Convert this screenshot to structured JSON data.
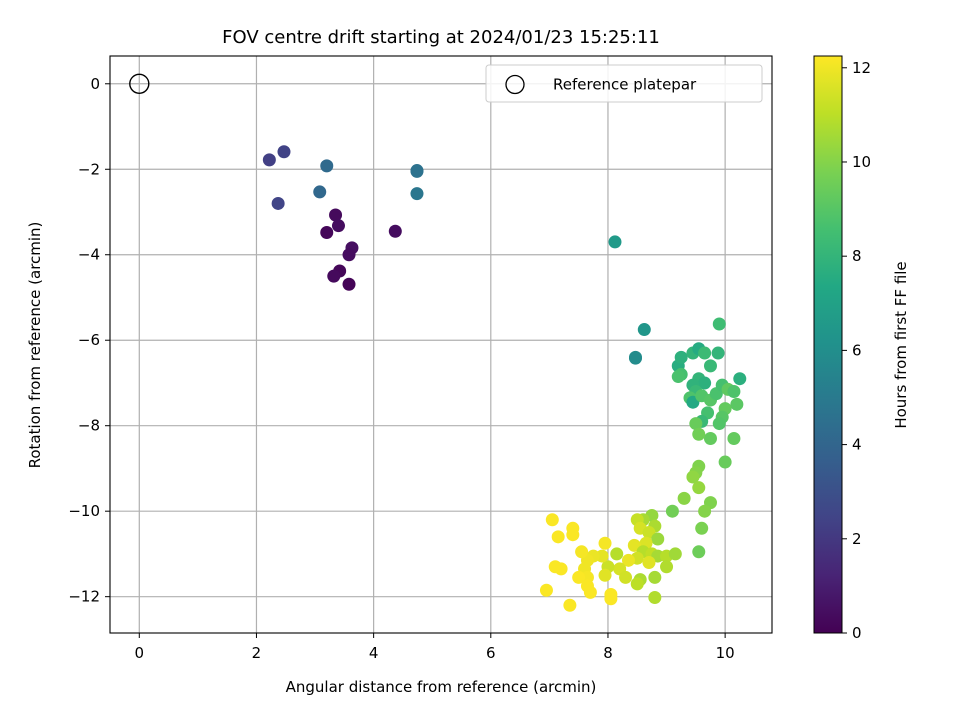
{
  "chart_data": {
    "type": "scatter",
    "title": "FOV centre drift starting at 2024/01/23 15:25:11",
    "xlabel": "Angular distance from reference (arcmin)",
    "ylabel": "Rotation from reference (arcmin)",
    "xlim": [
      -0.5,
      10.8
    ],
    "ylim": [
      -12.85,
      0.65
    ],
    "xticks": [
      0,
      2,
      4,
      6,
      8,
      10
    ],
    "yticks": [
      0,
      -2,
      -4,
      -6,
      -8,
      -10,
      -12
    ],
    "grid": true,
    "legend": {
      "position": "top-right",
      "entries": [
        "Reference platepar"
      ]
    },
    "reference_point": {
      "x": 0,
      "y": 0,
      "label": "Reference platepar",
      "marker": "open-circle"
    },
    "colorbar": {
      "label": "Hours from first FF file",
      "min": 0,
      "max": 12.25,
      "ticks": [
        0,
        2,
        4,
        6,
        8,
        10,
        12
      ],
      "colormap": "viridis"
    },
    "series": [
      {
        "points": [
          {
            "x": 2.22,
            "y": -1.78,
            "c": 2.3
          },
          {
            "x": 2.47,
            "y": -1.59,
            "c": 2.4
          },
          {
            "x": 2.37,
            "y": -2.8,
            "c": 2.5
          },
          {
            "x": 3.2,
            "y": -1.92,
            "c": 4.2
          },
          {
            "x": 3.08,
            "y": -2.53,
            "c": 4.1
          },
          {
            "x": 4.74,
            "y": -2.03,
            "c": 4.6
          },
          {
            "x": 4.74,
            "y": -2.05,
            "c": 4.6
          },
          {
            "x": 4.74,
            "y": -2.57,
            "c": 4.8
          },
          {
            "x": 3.35,
            "y": -3.07,
            "c": 0.3
          },
          {
            "x": 3.4,
            "y": -3.32,
            "c": 0.4
          },
          {
            "x": 3.2,
            "y": -3.48,
            "c": 0.2
          },
          {
            "x": 3.63,
            "y": -3.84,
            "c": 0.5
          },
          {
            "x": 3.58,
            "y": -4.0,
            "c": 0.4
          },
          {
            "x": 3.42,
            "y": -4.38,
            "c": 0.2
          },
          {
            "x": 3.32,
            "y": -4.5,
            "c": 0.3
          },
          {
            "x": 3.58,
            "y": -4.69,
            "c": 0.1
          },
          {
            "x": 4.37,
            "y": -3.45,
            "c": 0.4
          },
          {
            "x": 8.12,
            "y": -3.7,
            "c": 6.6
          },
          {
            "x": 8.62,
            "y": -5.75,
            "c": 6.4
          },
          {
            "x": 8.47,
            "y": -6.42,
            "c": 5.9
          },
          {
            "x": 8.47,
            "y": -6.4,
            "c": 5.9
          },
          {
            "x": 9.2,
            "y": -6.6,
            "c": 7.6
          },
          {
            "x": 9.25,
            "y": -6.4,
            "c": 7.8
          },
          {
            "x": 9.45,
            "y": -6.3,
            "c": 8.0
          },
          {
            "x": 9.55,
            "y": -6.2,
            "c": 7.5
          },
          {
            "x": 9.65,
            "y": -6.3,
            "c": 8.3
          },
          {
            "x": 9.9,
            "y": -5.62,
            "c": 8.4
          },
          {
            "x": 9.88,
            "y": -6.3,
            "c": 8.0
          },
          {
            "x": 9.75,
            "y": -6.6,
            "c": 8.2
          },
          {
            "x": 9.25,
            "y": -6.8,
            "c": 8.6
          },
          {
            "x": 9.2,
            "y": -6.85,
            "c": 8.7
          },
          {
            "x": 9.55,
            "y": -6.9,
            "c": 8.0
          },
          {
            "x": 9.65,
            "y": -7.0,
            "c": 7.8
          },
          {
            "x": 9.45,
            "y": -7.05,
            "c": 7.9
          },
          {
            "x": 9.5,
            "y": -7.2,
            "c": 8.2
          },
          {
            "x": 9.4,
            "y": -7.35,
            "c": 8.8
          },
          {
            "x": 9.45,
            "y": -7.45,
            "c": 7.4
          },
          {
            "x": 9.6,
            "y": -7.3,
            "c": 8.9
          },
          {
            "x": 9.75,
            "y": -7.4,
            "c": 9.0
          },
          {
            "x": 9.85,
            "y": -7.25,
            "c": 8.7
          },
          {
            "x": 9.95,
            "y": -7.05,
            "c": 8.6
          },
          {
            "x": 10.05,
            "y": -7.15,
            "c": 9.2
          },
          {
            "x": 10.15,
            "y": -7.2,
            "c": 8.8
          },
          {
            "x": 10.25,
            "y": -6.9,
            "c": 7.7
          },
          {
            "x": 10.2,
            "y": -7.5,
            "c": 9.1
          },
          {
            "x": 10.0,
            "y": -7.6,
            "c": 9.3
          },
          {
            "x": 9.95,
            "y": -7.8,
            "c": 9.0
          },
          {
            "x": 9.9,
            "y": -7.95,
            "c": 8.9
          },
          {
            "x": 9.7,
            "y": -7.7,
            "c": 8.6
          },
          {
            "x": 9.6,
            "y": -7.9,
            "c": 8.2
          },
          {
            "x": 9.5,
            "y": -7.95,
            "c": 9.4
          },
          {
            "x": 9.75,
            "y": -8.3,
            "c": 9.3
          },
          {
            "x": 9.55,
            "y": -8.2,
            "c": 9.6
          },
          {
            "x": 10.15,
            "y": -8.3,
            "c": 9.3
          },
          {
            "x": 10.0,
            "y": -8.85,
            "c": 9.4
          },
          {
            "x": 9.55,
            "y": -8.95,
            "c": 9.9
          },
          {
            "x": 9.5,
            "y": -9.1,
            "c": 10.0
          },
          {
            "x": 9.45,
            "y": -9.2,
            "c": 10.2
          },
          {
            "x": 9.55,
            "y": -9.45,
            "c": 10.3
          },
          {
            "x": 9.3,
            "y": -9.7,
            "c": 10.1
          },
          {
            "x": 9.75,
            "y": -9.8,
            "c": 9.9
          },
          {
            "x": 9.65,
            "y": -10.0,
            "c": 10.0
          },
          {
            "x": 9.1,
            "y": -10.0,
            "c": 9.6
          },
          {
            "x": 9.6,
            "y": -10.4,
            "c": 9.8
          },
          {
            "x": 9.55,
            "y": -10.95,
            "c": 9.5
          },
          {
            "x": 8.75,
            "y": -10.1,
            "c": 10.3
          },
          {
            "x": 8.6,
            "y": -10.2,
            "c": 10.6
          },
          {
            "x": 8.5,
            "y": -10.2,
            "c": 11.2
          },
          {
            "x": 8.8,
            "y": -10.35,
            "c": 10.7
          },
          {
            "x": 8.55,
            "y": -10.4,
            "c": 11.5
          },
          {
            "x": 8.7,
            "y": -10.5,
            "c": 11.3
          },
          {
            "x": 8.85,
            "y": -10.65,
            "c": 10.4
          },
          {
            "x": 8.65,
            "y": -10.75,
            "c": 11.6
          },
          {
            "x": 8.45,
            "y": -10.8,
            "c": 11.8
          },
          {
            "x": 8.6,
            "y": -10.95,
            "c": 10.9
          },
          {
            "x": 8.75,
            "y": -11.0,
            "c": 11.1
          },
          {
            "x": 8.85,
            "y": -11.05,
            "c": 10.6
          },
          {
            "x": 8.5,
            "y": -11.1,
            "c": 11.4
          },
          {
            "x": 8.7,
            "y": -11.2,
            "c": 11.7
          },
          {
            "x": 9.0,
            "y": -11.05,
            "c": 10.9
          },
          {
            "x": 9.15,
            "y": -11.0,
            "c": 10.5
          },
          {
            "x": 9.0,
            "y": -11.3,
            "c": 10.8
          },
          {
            "x": 8.35,
            "y": -11.15,
            "c": 11.9
          },
          {
            "x": 8.2,
            "y": -11.35,
            "c": 11.5
          },
          {
            "x": 8.15,
            "y": -11.0,
            "c": 10.9
          },
          {
            "x": 8.3,
            "y": -11.55,
            "c": 11.4
          },
          {
            "x": 8.55,
            "y": -11.6,
            "c": 10.7
          },
          {
            "x": 8.5,
            "y": -11.7,
            "c": 11.0
          },
          {
            "x": 8.8,
            "y": -11.55,
            "c": 10.6
          },
          {
            "x": 8.8,
            "y": -12.02,
            "c": 10.8
          },
          {
            "x": 8.0,
            "y": -11.3,
            "c": 11.3
          },
          {
            "x": 7.95,
            "y": -11.5,
            "c": 11.7
          },
          {
            "x": 7.9,
            "y": -11.05,
            "c": 11.8
          },
          {
            "x": 7.75,
            "y": -11.05,
            "c": 11.9
          },
          {
            "x": 7.65,
            "y": -11.15,
            "c": 12.0
          },
          {
            "x": 7.6,
            "y": -11.35,
            "c": 12.0
          },
          {
            "x": 7.65,
            "y": -11.55,
            "c": 12.1
          },
          {
            "x": 7.5,
            "y": -11.55,
            "c": 12.2
          },
          {
            "x": 7.55,
            "y": -10.95,
            "c": 12.1
          },
          {
            "x": 7.95,
            "y": -10.75,
            "c": 12.1
          },
          {
            "x": 7.4,
            "y": -10.4,
            "c": 12.2
          },
          {
            "x": 7.4,
            "y": -10.55,
            "c": 12.2
          },
          {
            "x": 7.15,
            "y": -10.6,
            "c": 12.2
          },
          {
            "x": 7.05,
            "y": -10.2,
            "c": 12.2
          },
          {
            "x": 7.1,
            "y": -11.3,
            "c": 12.2
          },
          {
            "x": 7.2,
            "y": -11.35,
            "c": 12.2
          },
          {
            "x": 7.65,
            "y": -11.75,
            "c": 12.2
          },
          {
            "x": 7.7,
            "y": -11.9,
            "c": 12.2
          },
          {
            "x": 6.95,
            "y": -11.85,
            "c": 12.2
          },
          {
            "x": 7.35,
            "y": -12.2,
            "c": 12.2
          },
          {
            "x": 8.05,
            "y": -11.95,
            "c": 12.2
          },
          {
            "x": 8.05,
            "y": -12.05,
            "c": 12.2
          }
        ]
      }
    ]
  }
}
